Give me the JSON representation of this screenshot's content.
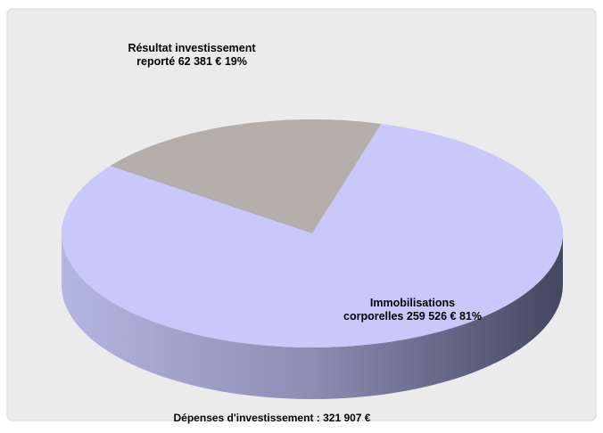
{
  "chart_data": {
    "type": "pie3d",
    "title": "Dépenses d'investissement : 321 907 €",
    "categories": [
      "Résultat investissement reporté",
      "Immobilisations corporelles"
    ],
    "values": [
      62381,
      259526
    ],
    "value_labels": [
      "62 381 €",
      "259 526 €"
    ],
    "percent_labels": [
      "19%",
      "81%"
    ],
    "colors": [
      "#b3aeaa",
      "#c8c8fa"
    ]
  }
}
